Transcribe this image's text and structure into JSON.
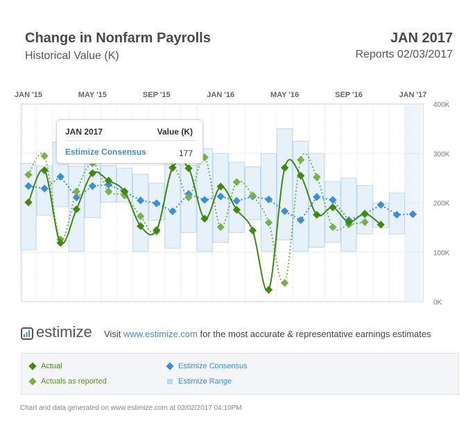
{
  "header": {
    "title": "Change in Nonfarm Payrolls",
    "subtitle": "Historical Value (K)",
    "period": "JAN 2017",
    "reports": "Reports 02/03/2017"
  },
  "tooltip": {
    "period": "JAN 2017",
    "column": "Value (K)",
    "series": "Estimize Consensus",
    "value": "177"
  },
  "branding": {
    "logo_text": "estimize",
    "visit_prefix": "Visit",
    "visit_link": "www.estimize.com",
    "visit_suffix": "for the most accurate & representative earnings estimates"
  },
  "legend": {
    "actual": "Actual",
    "actuals_reported": "Actuals as reported",
    "consensus": "Estimize Consensus",
    "range": "Estimize Range"
  },
  "footer": "Chart and data generated on www.estimize.com at 02/02/2017 04:10PM",
  "colors": {
    "actual": "#3f8a0c",
    "actuals_reported": "#7ab04a",
    "consensus": "#3b8fd8",
    "range_fill": "#e3effa",
    "range_stroke": "#a9cbeb",
    "highlight": "#eef4fb"
  },
  "chart_data": {
    "type": "line",
    "x": [
      "Jan '15",
      "Feb '15",
      "Mar '15",
      "Apr '15",
      "May '15",
      "Jun '15",
      "Jul '15",
      "Aug '15",
      "Sep '15",
      "Oct '15",
      "Nov '15",
      "Dec '15",
      "Jan '16",
      "Feb '16",
      "Mar '16",
      "Apr '16",
      "May '16",
      "Jun '16",
      "Jul '16",
      "Aug '16",
      "Sep '16",
      "Oct '16",
      "Nov '16",
      "Dec '16",
      "Jan '17"
    ],
    "x_tick_labels": [
      "JAN '15",
      "MAY '15",
      "SEP '15",
      "JAN '16",
      "MAY '16",
      "SEP '16",
      "JAN '17"
    ],
    "x_tick_indices": [
      0,
      4,
      8,
      12,
      16,
      20,
      24
    ],
    "y_tick_labels": [
      "0K",
      "100K",
      "200K",
      "300K",
      "400K"
    ],
    "ylim": [
      0,
      400
    ],
    "grid": true,
    "series": [
      {
        "name": "Actual",
        "values": [
          201,
          266,
          119,
          187,
          260,
          245,
          223,
          153,
          145,
          271,
          270,
          168,
          233,
          186,
          144,
          24,
          271,
          255,
          176,
          191,
          161,
          178,
          156,
          null,
          null
        ]
      },
      {
        "name": "Actuals as reported",
        "values": [
          257,
          295,
          126,
          223,
          280,
          223,
          215,
          173,
          142,
          271,
          211,
          292,
          151,
          242,
          215,
          160,
          38,
          287,
          252,
          151,
          156,
          161,
          null,
          null,
          null
        ]
      },
      {
        "name": "Estimize Consensus",
        "values": [
          234,
          229,
          253,
          211,
          234,
          237,
          223,
          205,
          199,
          183,
          218,
          206,
          213,
          204,
          213,
          207,
          183,
          165,
          212,
          206,
          165,
          177,
          196,
          176,
          177
        ]
      }
    ],
    "range": {
      "name": "Estimize Range",
      "low": [
        105,
        175,
        192,
        102,
        170,
        202,
        202,
        102,
        165,
        108,
        140,
        102,
        120,
        140,
        166,
        102,
        125,
        102,
        110,
        120,
        102,
        137,
        150,
        137,
        150
      ],
      "high": [
        280,
        275,
        323,
        274,
        282,
        275,
        270,
        258,
        240,
        290,
        276,
        310,
        300,
        282,
        273,
        300,
        350,
        325,
        300,
        243,
        250,
        235,
        200,
        220,
        null
      ]
    },
    "highlighted": "Jan '17"
  }
}
